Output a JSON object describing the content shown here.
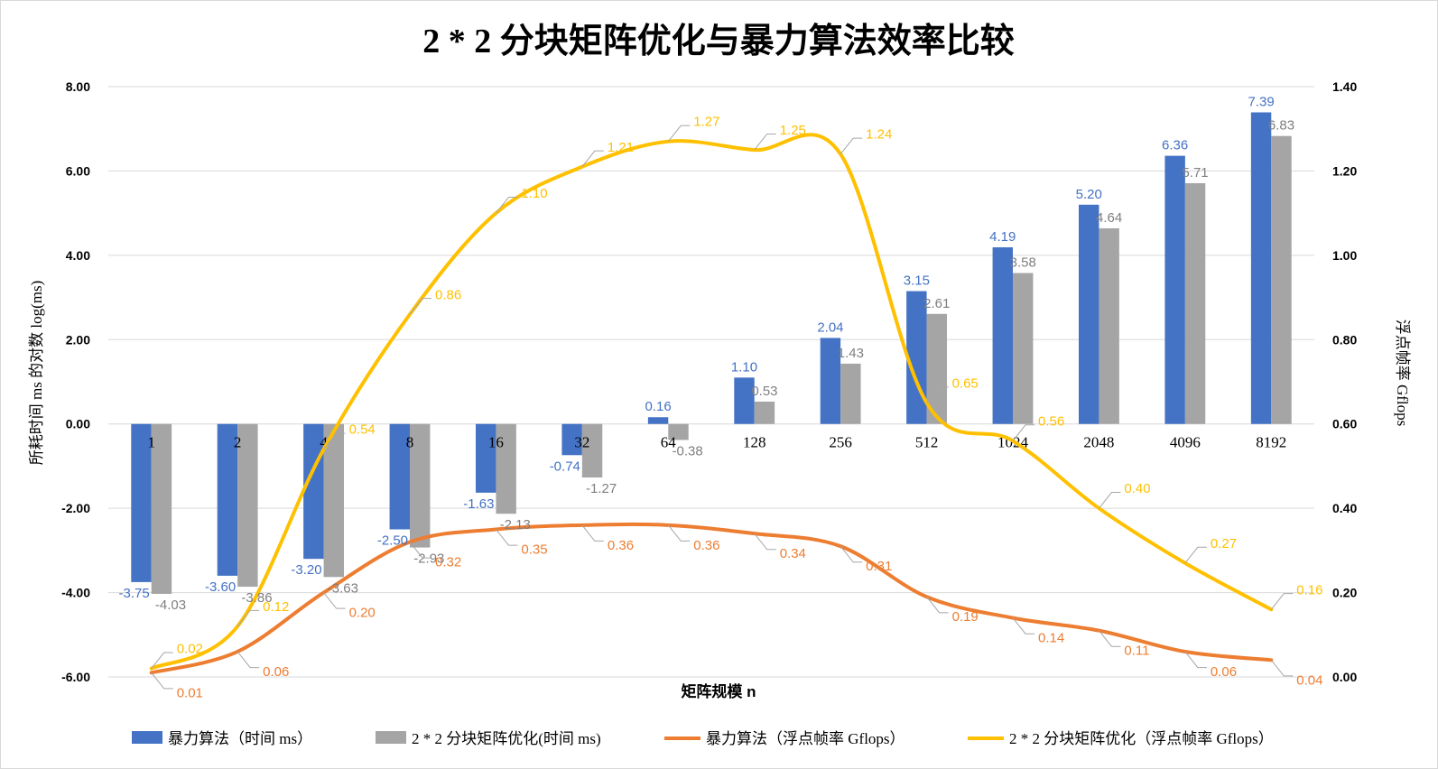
{
  "chart_data": {
    "type": "bar",
    "title": "2 * 2 分块矩阵优化与暴力算法效率比较",
    "xlabel": "矩阵规模 n",
    "ylabel": "所耗时间 ms 的对数 log(ms)",
    "y2label": "浮点帧率 Gflops",
    "categories": [
      "1",
      "2",
      "4",
      "8",
      "16",
      "32",
      "64",
      "128",
      "256",
      "512",
      "1024",
      "2048",
      "4096",
      "8192"
    ],
    "ylim": [
      -6,
      8
    ],
    "y_ticks": [
      "-6.00",
      "-4.00",
      "-2.00",
      "0.00",
      "2.00",
      "4.00",
      "6.00",
      "8.00"
    ],
    "y2lim": [
      0,
      1.4
    ],
    "y2_ticks": [
      "0.00",
      "0.20",
      "0.40",
      "0.60",
      "0.80",
      "1.00",
      "1.20",
      "1.40"
    ],
    "grid": true,
    "legend_position": "bottom",
    "series": [
      {
        "name": "暴力算法（时间 ms）",
        "kind": "bar",
        "axis": "left",
        "color": "#4472C4",
        "label_color": "#4472C4",
        "values": [
          -3.75,
          -3.6,
          -3.2,
          -2.5,
          -1.63,
          -0.74,
          0.16,
          1.1,
          2.04,
          3.15,
          4.19,
          5.2,
          6.36,
          7.39
        ],
        "labels": [
          "-3.75",
          "-3.60",
          "-3.20",
          "-2.50",
          "-1.63",
          "-0.74",
          "0.16",
          "1.10",
          "2.04",
          "3.15",
          "4.19",
          "5.20",
          "6.36",
          "7.39"
        ]
      },
      {
        "name": "2 * 2 分块矩阵优化(时间 ms)",
        "kind": "bar",
        "axis": "left",
        "color": "#A5A5A5",
        "label_color": "#7F7F7F",
        "values": [
          -4.03,
          -3.86,
          -3.63,
          -2.93,
          -2.13,
          -1.27,
          -0.38,
          0.53,
          1.43,
          2.61,
          3.58,
          4.64,
          5.71,
          6.83
        ],
        "labels": [
          "-4.03",
          "-3.86",
          "-3.63",
          "-2.93",
          "-2.13",
          "-1.27",
          "-0.38",
          "0.53",
          "1.43",
          "2.61",
          "3.58",
          "4.64",
          "5.71",
          "6.83"
        ]
      },
      {
        "name": "暴力算法（浮点帧率 Gflops）",
        "kind": "line",
        "axis": "right",
        "color": "#ED7D31",
        "label_color": "#ED7D31",
        "values": [
          0.01,
          0.06,
          0.2,
          0.32,
          0.35,
          0.36,
          0.36,
          0.34,
          0.31,
          0.19,
          0.14,
          0.11,
          0.06,
          0.04
        ],
        "labels": [
          "0.01",
          "0.06",
          "0.20",
          "0.32",
          "0.35",
          "0.36",
          "0.36",
          "0.34",
          "0.31",
          "0.19",
          "0.14",
          "0.11",
          "0.06",
          "0.04"
        ]
      },
      {
        "name": "2 * 2 分块矩阵优化（浮点帧率 Gflops）",
        "kind": "line",
        "axis": "right",
        "color": "#FFC000",
        "label_color": "#FFC000",
        "values": [
          0.02,
          0.12,
          0.54,
          0.86,
          1.1,
          1.21,
          1.27,
          1.25,
          1.24,
          0.65,
          0.56,
          0.4,
          0.27,
          0.16
        ],
        "labels": [
          "0.02",
          "0.12",
          "0.54",
          "0.86",
          "1.10",
          "1.21",
          "1.27",
          "1.25",
          "1.24",
          "0.65",
          "0.56",
          "0.40",
          "0.27",
          "0.16"
        ]
      }
    ]
  }
}
